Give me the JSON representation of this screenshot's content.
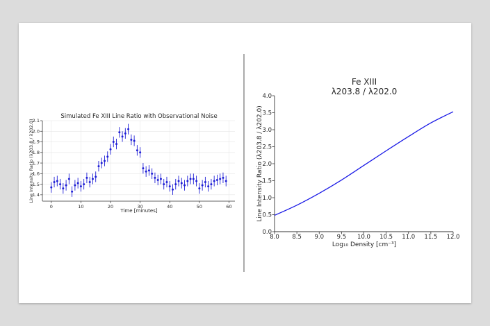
{
  "chart_data": [
    {
      "type": "scatter",
      "title": "Simulated Fe XIII Line Ratio with Observational Noise",
      "xlabel": "Time [minutes]",
      "ylabel": "Line Intensity Ratio (λ203.8 / λ202.0)",
      "xlim": [
        -3,
        62
      ],
      "ylim": [
        1.34,
        2.1
      ],
      "xticks": [
        0,
        10,
        20,
        30,
        40,
        50,
        60
      ],
      "yticks": [
        1.4,
        1.5,
        1.6,
        1.7,
        1.8,
        1.9,
        2.0,
        2.1
      ],
      "grid": true,
      "marker_color": "#1f1fd6",
      "errorbar_color": "#1f1fd6",
      "errorbar_halfwidth": 0.05,
      "x": [
        0,
        1,
        2,
        3,
        4,
        5,
        6,
        7,
        8,
        9,
        10,
        11,
        12,
        13,
        14,
        15,
        16,
        17,
        18,
        19,
        20,
        21,
        22,
        23,
        24,
        25,
        26,
        27,
        28,
        29,
        30,
        31,
        32,
        33,
        34,
        35,
        36,
        37,
        38,
        39,
        40,
        41,
        42,
        43,
        44,
        45,
        46,
        47,
        48,
        49,
        50,
        51,
        52,
        53,
        54,
        55,
        56,
        57,
        58,
        59
      ],
      "y": [
        1.47,
        1.52,
        1.53,
        1.5,
        1.46,
        1.49,
        1.55,
        1.43,
        1.49,
        1.51,
        1.48,
        1.5,
        1.56,
        1.52,
        1.55,
        1.57,
        1.67,
        1.7,
        1.72,
        1.76,
        1.83,
        1.9,
        1.88,
        1.99,
        1.95,
        1.98,
        2.02,
        1.92,
        1.91,
        1.82,
        1.8,
        1.65,
        1.62,
        1.63,
        1.6,
        1.56,
        1.54,
        1.55,
        1.5,
        1.52,
        1.48,
        1.45,
        1.5,
        1.53,
        1.51,
        1.49,
        1.53,
        1.55,
        1.55,
        1.53,
        1.46,
        1.49,
        1.52,
        1.48,
        1.5,
        1.53,
        1.54,
        1.55,
        1.56,
        1.53
      ]
    },
    {
      "type": "line",
      "title": "Fe XIII\nλ203.8 / λ202.0",
      "title_lines": [
        "Fe XIII",
        "λ203.8 / λ202.0"
      ],
      "xlabel": "Log₁₀ Density [cm⁻³]",
      "ylabel": "Line Intensity Ratio (λ203.8 / λ202.0)",
      "xlim": [
        8.0,
        12.0
      ],
      "ylim": [
        0.0,
        4.0
      ],
      "xticks": [
        8.0,
        8.5,
        9.0,
        9.5,
        10.0,
        10.5,
        11.0,
        11.5,
        12.0
      ],
      "yticks": [
        0.0,
        0.5,
        1.0,
        1.5,
        2.0,
        2.5,
        3.0,
        3.5,
        4.0
      ],
      "grid": false,
      "line_color": "#1a1ae6",
      "x": [
        8.0,
        8.5,
        9.0,
        9.5,
        10.0,
        10.5,
        11.0,
        11.5,
        12.0
      ],
      "y": [
        0.48,
        0.78,
        1.13,
        1.52,
        1.95,
        2.38,
        2.8,
        3.2,
        3.53
      ]
    }
  ]
}
